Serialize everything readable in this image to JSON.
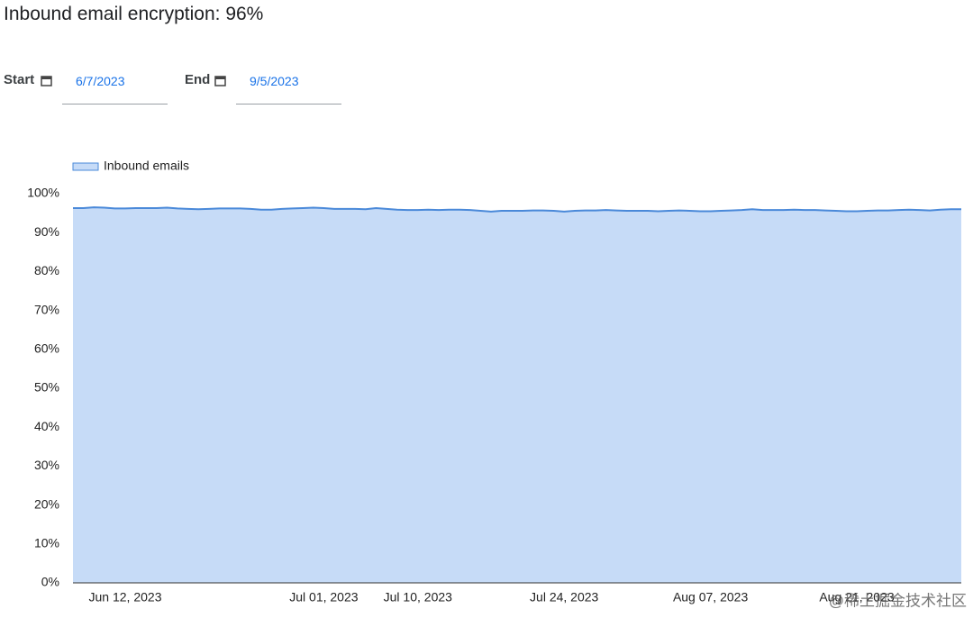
{
  "header": {
    "title": "Inbound email encryption: 96%"
  },
  "filters": {
    "start": {
      "label": "Start",
      "value": "6/7/2023"
    },
    "end": {
      "label": "End",
      "value": "9/5/2023"
    }
  },
  "watermark": "@稀土掘金技术社区",
  "chart_data": {
    "type": "area",
    "x": [
      "2023-06-07",
      "2023-06-08",
      "2023-06-09",
      "2023-06-10",
      "2023-06-11",
      "2023-06-12",
      "2023-06-13",
      "2023-06-14",
      "2023-06-15",
      "2023-06-16",
      "2023-06-17",
      "2023-06-18",
      "2023-06-19",
      "2023-06-20",
      "2023-06-21",
      "2023-06-22",
      "2023-06-23",
      "2023-06-24",
      "2023-06-25",
      "2023-06-26",
      "2023-06-27",
      "2023-06-28",
      "2023-06-29",
      "2023-06-30",
      "2023-07-01",
      "2023-07-02",
      "2023-07-03",
      "2023-07-04",
      "2023-07-05",
      "2023-07-06",
      "2023-07-07",
      "2023-07-08",
      "2023-07-09",
      "2023-07-10",
      "2023-07-11",
      "2023-07-12",
      "2023-07-13",
      "2023-07-14",
      "2023-07-15",
      "2023-07-16",
      "2023-07-17",
      "2023-07-18",
      "2023-07-19",
      "2023-07-20",
      "2023-07-21",
      "2023-07-22",
      "2023-07-23",
      "2023-07-24",
      "2023-07-25",
      "2023-07-26",
      "2023-07-27",
      "2023-07-28",
      "2023-07-29",
      "2023-07-30",
      "2023-07-31",
      "2023-08-01",
      "2023-08-02",
      "2023-08-03",
      "2023-08-04",
      "2023-08-05",
      "2023-08-06",
      "2023-08-07",
      "2023-08-08",
      "2023-08-09",
      "2023-08-10",
      "2023-08-11",
      "2023-08-12",
      "2023-08-13",
      "2023-08-14",
      "2023-08-15",
      "2023-08-16",
      "2023-08-17",
      "2023-08-18",
      "2023-08-19",
      "2023-08-20",
      "2023-08-21",
      "2023-08-22",
      "2023-08-23",
      "2023-08-24",
      "2023-08-25",
      "2023-08-26",
      "2023-08-27",
      "2023-08-28",
      "2023-08-29",
      "2023-08-30",
      "2023-08-31"
    ],
    "series": [
      {
        "name": "Inbound emails",
        "color": "#4a89d9",
        "fill": "#c6dbf7",
        "values": [
          96.3,
          96.3,
          96.5,
          96.4,
          96.2,
          96.2,
          96.3,
          96.3,
          96.3,
          96.4,
          96.2,
          96.1,
          96.0,
          96.1,
          96.2,
          96.2,
          96.2,
          96.1,
          95.9,
          95.9,
          96.1,
          96.2,
          96.3,
          96.4,
          96.3,
          96.1,
          96.1,
          96.1,
          96.0,
          96.3,
          96.1,
          95.9,
          95.8,
          95.8,
          95.9,
          95.8,
          95.9,
          95.9,
          95.8,
          95.6,
          95.4,
          95.6,
          95.6,
          95.6,
          95.7,
          95.7,
          95.6,
          95.4,
          95.6,
          95.7,
          95.7,
          95.8,
          95.7,
          95.6,
          95.6,
          95.6,
          95.5,
          95.6,
          95.7,
          95.6,
          95.5,
          95.5,
          95.6,
          95.7,
          95.8,
          96.0,
          95.8,
          95.8,
          95.8,
          95.9,
          95.8,
          95.8,
          95.7,
          95.6,
          95.5,
          95.5,
          95.6,
          95.7,
          95.7,
          95.8,
          95.9,
          95.8,
          95.7,
          95.9,
          96.0,
          96.0
        ]
      }
    ],
    "xlim": [
      "2023-06-07",
      "2023-08-31"
    ],
    "xticks": [
      {
        "value": "2023-06-12",
        "label": "Jun 12, 2023"
      },
      {
        "value": "2023-07-01",
        "label": "Jul 01, 2023"
      },
      {
        "value": "2023-07-10",
        "label": "Jul 10, 2023"
      },
      {
        "value": "2023-07-24",
        "label": "Jul 24, 2023"
      },
      {
        "value": "2023-08-07",
        "label": "Aug 07, 2023"
      },
      {
        "value": "2023-08-21",
        "label": "Aug 21, 2023"
      }
    ],
    "ylim": [
      0,
      100
    ],
    "yticks": [
      {
        "value": 0,
        "label": "0%"
      },
      {
        "value": 10,
        "label": "10%"
      },
      {
        "value": 20,
        "label": "20%"
      },
      {
        "value": 30,
        "label": "30%"
      },
      {
        "value": 40,
        "label": "40%"
      },
      {
        "value": 50,
        "label": "50%"
      },
      {
        "value": 60,
        "label": "60%"
      },
      {
        "value": 70,
        "label": "70%"
      },
      {
        "value": 80,
        "label": "80%"
      },
      {
        "value": 90,
        "label": "90%"
      },
      {
        "value": 100,
        "label": "100%"
      }
    ],
    "legend": "top-left"
  }
}
